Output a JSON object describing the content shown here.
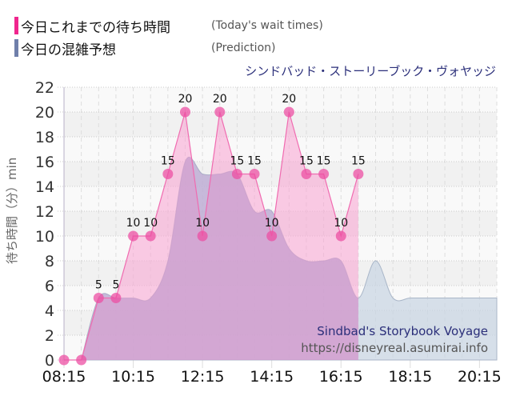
{
  "legend": [
    {
      "label_jp": "今日これまでの待ち時間",
      "label_en": "(Today's wait times)",
      "color": "#f0268e"
    },
    {
      "label_jp": "今日の混雑予想",
      "label_en": "(Prediction)",
      "color": "#6f7faa"
    }
  ],
  "subtitle": "シンドバッド・ストーリーブック・ヴォヤッジ",
  "watermark": {
    "title": "Sindbad's Storybook Voyage",
    "url": "https://disneyreal.asumirai.info"
  },
  "chart_data": {
    "type": "area",
    "title": "シンドバッド・ストーリーブック・ヴォヤッジ",
    "xlabel": "",
    "ylabel": "待ち時間（分）min",
    "ylim": [
      0,
      22
    ],
    "yticks": [
      0,
      2,
      4,
      6,
      8,
      10,
      12,
      14,
      16,
      18,
      20,
      22
    ],
    "xticks": [
      "08:15",
      "10:15",
      "12:15",
      "14:15",
      "16:15",
      "18:15",
      "20:15"
    ],
    "xrange": [
      "08:15",
      "20:45"
    ],
    "grid": true,
    "legend_position": "top-left",
    "series": [
      {
        "name": "今日これまでの待ち時間 (Today's wait times)",
        "color": "#f0268e",
        "markers": true,
        "data_labels": true,
        "x": [
          "08:15",
          "08:45",
          "09:15",
          "09:45",
          "10:15",
          "10:45",
          "11:15",
          "11:45",
          "12:15",
          "12:45",
          "13:15",
          "13:45",
          "14:15",
          "14:45",
          "15:15",
          "15:45",
          "16:15",
          "16:45"
        ],
        "values": [
          0,
          0,
          5,
          5,
          10,
          10,
          15,
          20,
          10,
          20,
          15,
          15,
          10,
          20,
          15,
          15,
          10,
          15
        ]
      },
      {
        "name": "今日の混雑予想 (Prediction)",
        "color": "#6f7faa",
        "markers": false,
        "data_labels": false,
        "x": [
          "08:45",
          "09:15",
          "09:45",
          "10:15",
          "10:45",
          "11:15",
          "11:45",
          "12:15",
          "12:45",
          "13:15",
          "13:45",
          "14:15",
          "14:45",
          "15:15",
          "15:45",
          "16:15",
          "16:45",
          "17:15",
          "17:45",
          "18:15",
          "18:45",
          "19:15",
          "19:45",
          "20:15",
          "20:45"
        ],
        "values": [
          0,
          5,
          5,
          5,
          5,
          8,
          16,
          15,
          15,
          15,
          12,
          12,
          9,
          8,
          8,
          8,
          5,
          8,
          5,
          5,
          5,
          5,
          5,
          5,
          5
        ]
      }
    ]
  }
}
